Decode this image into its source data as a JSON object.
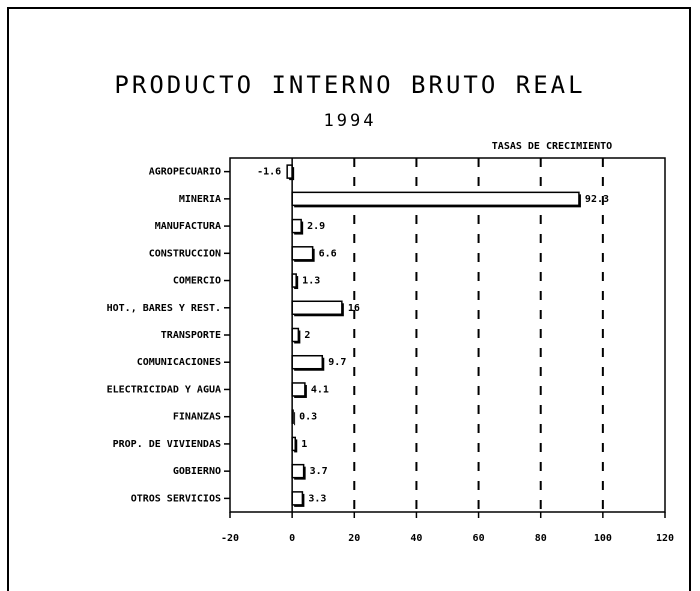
{
  "chart_data": {
    "type": "bar",
    "orientation": "horizontal",
    "title": "PRODUCTO INTERNO BRUTO REAL",
    "subtitle": "1994",
    "annotation": "TASAS DE CRECIMIENTO",
    "categories": [
      "AGROPECUARIO",
      "MINERIA",
      "MANUFACTURA",
      "CONSTRUCCION",
      "COMERCIO",
      "HOT., BARES Y REST.",
      "TRANSPORTE",
      "COMUNICACIONES",
      "ELECTRICIDAD Y AGUA",
      "FINANZAS",
      "PROP. DE VIVIENDAS",
      "GOBIERNO",
      "OTROS SERVICIOS"
    ],
    "values": [
      -1.6,
      92.3,
      2.9,
      6.6,
      1.3,
      16,
      2,
      9.7,
      4.1,
      0.3,
      1,
      3.7,
      3.3
    ],
    "color": "#ffffff",
    "xlim": [
      -20,
      120
    ],
    "xticks": [
      -20,
      0,
      20,
      40,
      60,
      80,
      100,
      120
    ],
    "grid": true
  }
}
